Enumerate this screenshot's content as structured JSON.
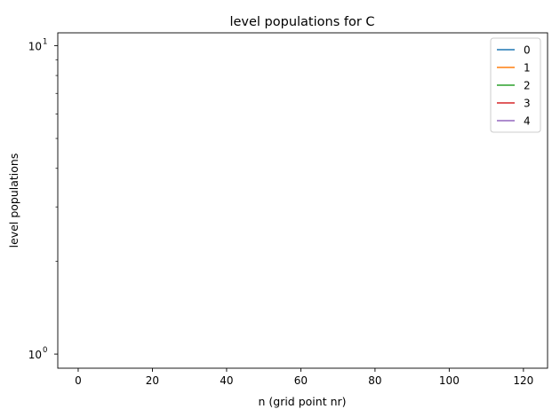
{
  "chart_data": {
    "type": "line",
    "title": "level populations for C",
    "xlabel": "n (grid point nr)",
    "ylabel": "level populations",
    "xlim": [
      -5.5,
      126.5
    ],
    "ylim": [
      0.9,
      11
    ],
    "yscale": "log",
    "grid": false,
    "legend_position": "top-right",
    "x_ticks": [
      0,
      20,
      40,
      60,
      80,
      100,
      120
    ],
    "y_major_ticks": [
      1,
      10
    ],
    "y_major_tick_labels": [
      "10",
      "10"
    ],
    "y_major_tick_exponents": [
      "0",
      "1"
    ],
    "y_minor_ticks": [
      2,
      3,
      4,
      5,
      6,
      7,
      8,
      9
    ],
    "series": [
      {
        "name": "0",
        "color": "#1f77b4",
        "x": [],
        "y": []
      },
      {
        "name": "1",
        "color": "#ff7f0e",
        "x": [],
        "y": []
      },
      {
        "name": "2",
        "color": "#2ca02c",
        "x": [],
        "y": []
      },
      {
        "name": "3",
        "color": "#d62728",
        "x": [],
        "y": []
      },
      {
        "name": "4",
        "color": "#9467bd",
        "x": [],
        "y": []
      }
    ]
  }
}
